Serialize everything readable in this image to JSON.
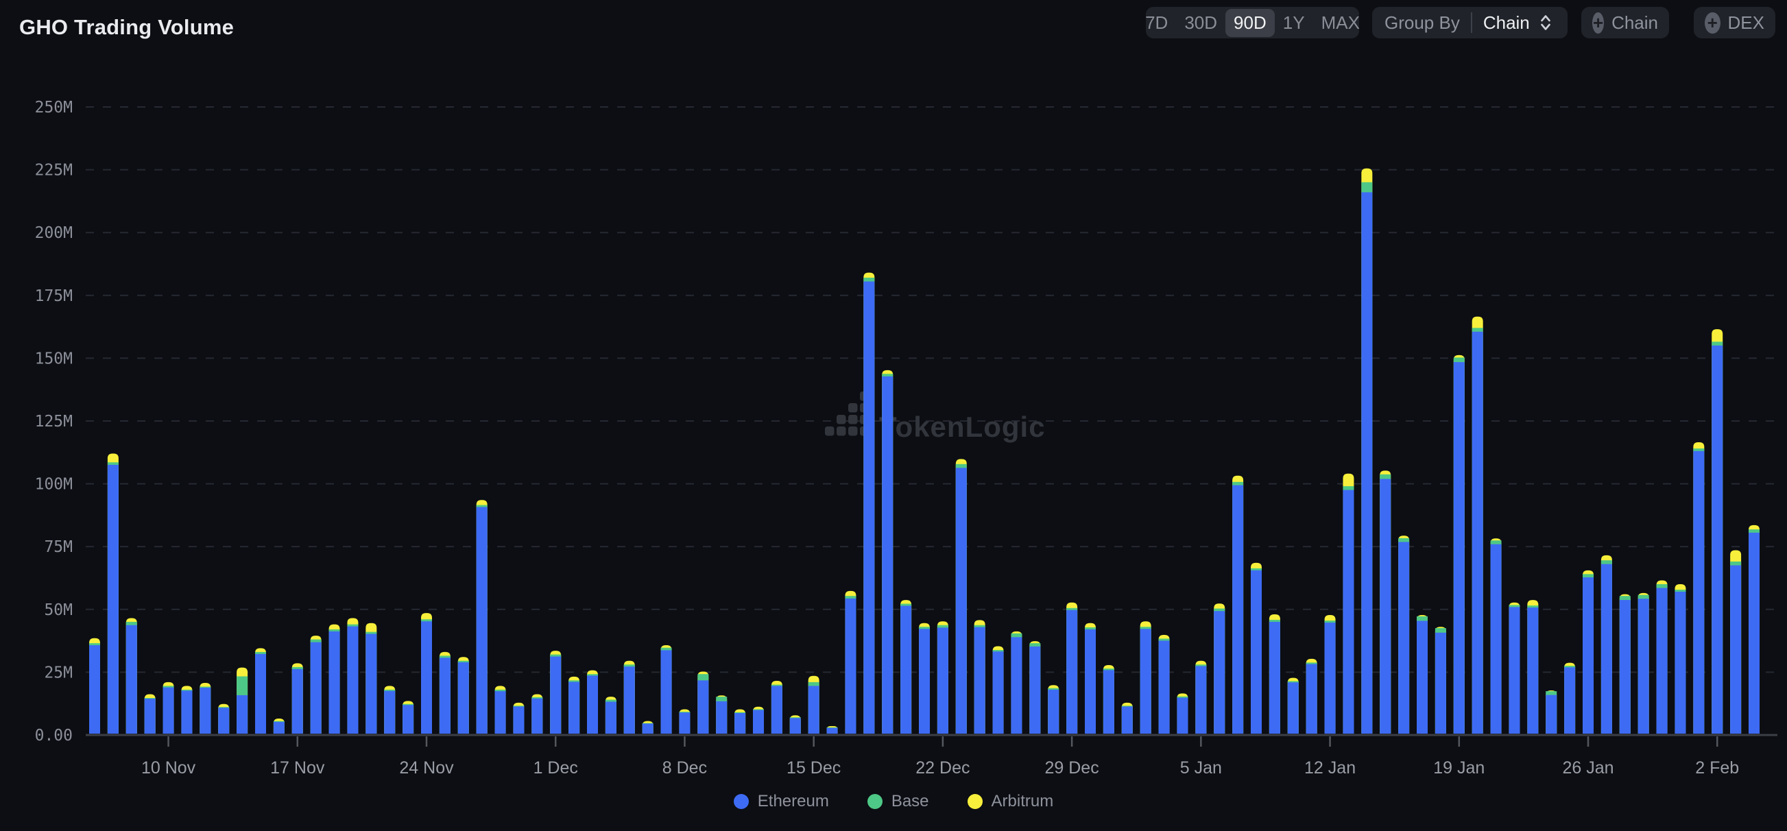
{
  "header": {
    "title": "GHO Trading Volume"
  },
  "controls": {
    "time_ranges": [
      "7D",
      "30D",
      "90D",
      "1Y",
      "MAX"
    ],
    "selected_range": "90D",
    "group_by_label": "Group By",
    "group_by_value": "Chain",
    "add_chain_label": "Chain",
    "add_dex_label": "DEX",
    "plus_icon": "+"
  },
  "watermark": {
    "text": "TokenLogic"
  },
  "legend": [
    {
      "label": "Ethereum",
      "color": "#3e6bf4"
    },
    {
      "label": "Base",
      "color": "#4ec886"
    },
    {
      "label": "Arbitrum",
      "color": "#f7ef3b"
    }
  ],
  "chart_data": {
    "type": "bar",
    "stacked": true,
    "title": "GHO Trading Volume",
    "units": "USD, millions",
    "ylim": [
      0,
      250000000
    ],
    "grid": "dashed-horizontal",
    "legend_position": "bottom-center",
    "y_tick_labels": [
      "0.00",
      "25M",
      "50M",
      "75M",
      "100M",
      "125M",
      "150M",
      "175M",
      "200M",
      "225M",
      "250M"
    ],
    "x_tick_labels": [
      "10 Nov",
      "17 Nov",
      "24 Nov",
      "1 Dec",
      "8 Dec",
      "15 Dec",
      "22 Dec",
      "29 Dec",
      "5 Jan",
      "12 Jan",
      "19 Jan",
      "26 Jan",
      "2 Feb"
    ],
    "x_tick_indices": [
      4,
      11,
      18,
      25,
      32,
      39,
      46,
      53,
      60,
      67,
      74,
      81,
      88
    ],
    "series_names": [
      "Ethereum",
      "Base",
      "Arbitrum"
    ],
    "colors": {
      "ethereum": "#3e6bf4",
      "base": "#4ec886",
      "arbitrum": "#f7ef3b"
    },
    "bars": [
      {
        "d": "6 Nov",
        "e": 35.2,
        "b": 0.8,
        "a": 2.0
      },
      {
        "d": "7 Nov",
        "e": 107.0,
        "b": 1.0,
        "a": 3.5
      },
      {
        "d": "8 Nov",
        "e": 43.2,
        "b": 1.3,
        "a": 1.5
      },
      {
        "d": "9 Nov",
        "e": 13.9,
        "b": 0.3,
        "a": 1.5
      },
      {
        "d": "10 Nov",
        "e": 18.4,
        "b": 0.6,
        "a": 1.5
      },
      {
        "d": "11 Nov",
        "e": 17.1,
        "b": 0.4,
        "a": 1.5
      },
      {
        "d": "12 Nov",
        "e": 18.3,
        "b": 0.4,
        "a": 1.5
      },
      {
        "d": "13 Nov",
        "e": 10.3,
        "b": 0.3,
        "a": 1.2
      },
      {
        "d": "14 Nov",
        "e": 15.3,
        "b": 7.5,
        "a": 3.5
      },
      {
        "d": "15 Nov",
        "e": 31.7,
        "b": 0.8,
        "a": 1.5
      },
      {
        "d": "16 Nov",
        "e": 4.7,
        "b": 0.3,
        "a": 1.0
      },
      {
        "d": "17 Nov",
        "e": 25.7,
        "b": 0.8,
        "a": 1.5
      },
      {
        "d": "18 Nov",
        "e": 36.4,
        "b": 1.1,
        "a": 1.5
      },
      {
        "d": "19 Nov",
        "e": 40.7,
        "b": 0.8,
        "a": 2.0
      },
      {
        "d": "20 Nov",
        "e": 42.7,
        "b": 0.8,
        "a": 2.5
      },
      {
        "d": "21 Nov",
        "e": 39.7,
        "b": 0.8,
        "a": 3.5
      },
      {
        "d": "22 Nov",
        "e": 17.0,
        "b": 0.5,
        "a": 1.5
      },
      {
        "d": "23 Nov",
        "e": 11.4,
        "b": 0.4,
        "a": 1.2
      },
      {
        "d": "24 Nov",
        "e": 44.7,
        "b": 0.8,
        "a": 2.5
      },
      {
        "d": "25 Nov",
        "e": 30.2,
        "b": 0.8,
        "a": 1.5
      },
      {
        "d": "26 Nov",
        "e": 28.4,
        "b": 0.6,
        "a": 1.5
      },
      {
        "d": "27 Nov",
        "e": 90.2,
        "b": 0.8,
        "a": 2.0
      },
      {
        "d": "28 Nov",
        "e": 16.9,
        "b": 0.6,
        "a": 1.5
      },
      {
        "d": "29 Nov",
        "e": 10.8,
        "b": 0.3,
        "a": 1.2
      },
      {
        "d": "30 Nov",
        "e": 14.0,
        "b": 0.5,
        "a": 1.2
      },
      {
        "d": "1 Dec",
        "e": 30.7,
        "b": 0.8,
        "a": 1.5
      },
      {
        "d": "2 Dec",
        "e": 20.6,
        "b": 0.6,
        "a": 1.5
      },
      {
        "d": "3 Dec",
        "e": 23.1,
        "b": 0.6,
        "a": 1.5
      },
      {
        "d": "4 Dec",
        "e": 12.7,
        "b": 0.8,
        "a": 1.2
      },
      {
        "d": "5 Dec",
        "e": 26.7,
        "b": 0.8,
        "a": 1.5
      },
      {
        "d": "6 Dec",
        "e": 4.0,
        "b": 0.2,
        "a": 0.8
      },
      {
        "d": "7 Dec",
        "e": 33.2,
        "b": 1.0,
        "a": 1.0
      },
      {
        "d": "8 Dec",
        "e": 8.4,
        "b": 0.3,
        "a": 1.0
      },
      {
        "d": "9 Dec",
        "e": 21.2,
        "b": 2.5,
        "a": 1.0
      },
      {
        "d": "10 Dec",
        "e": 12.9,
        "b": 1.8,
        "a": 0.5
      },
      {
        "d": "11 Dec",
        "e": 8.2,
        "b": 0.3,
        "a": 1.2
      },
      {
        "d": "12 Dec",
        "e": 9.4,
        "b": 0.3,
        "a": 1.0
      },
      {
        "d": "13 Dec",
        "e": 19.0,
        "b": 0.5,
        "a": 1.5
      },
      {
        "d": "14 Dec",
        "e": 6.2,
        "b": 0.3,
        "a": 0.8
      },
      {
        "d": "15 Dec",
        "e": 19.0,
        "b": 1.5,
        "a": 2.5
      },
      {
        "d": "16 Dec",
        "e": 2.3,
        "b": 0.2,
        "a": 0.5
      },
      {
        "d": "17 Dec",
        "e": 53.8,
        "b": 1.0,
        "a": 2.0
      },
      {
        "d": "18 Dec",
        "e": 180.0,
        "b": 1.5,
        "a": 2.0
      },
      {
        "d": "19 Dec",
        "e": 142.2,
        "b": 1.0,
        "a": 1.5
      },
      {
        "d": "20 Dec",
        "e": 50.9,
        "b": 0.8,
        "a": 1.5
      },
      {
        "d": "21 Dec",
        "e": 41.7,
        "b": 0.8,
        "a": 1.5
      },
      {
        "d": "22 Dec",
        "e": 42.2,
        "b": 1.0,
        "a": 1.5
      },
      {
        "d": "23 Dec",
        "e": 105.8,
        "b": 1.5,
        "a": 2.0
      },
      {
        "d": "24 Dec",
        "e": 42.4,
        "b": 0.8,
        "a": 2.0
      },
      {
        "d": "25 Dec",
        "e": 32.7,
        "b": 0.6,
        "a": 1.5
      },
      {
        "d": "26 Dec",
        "e": 38.4,
        "b": 1.5,
        "a": 0.8
      },
      {
        "d": "27 Dec",
        "e": 34.7,
        "b": 1.3,
        "a": 0.8
      },
      {
        "d": "28 Dec",
        "e": 17.5,
        "b": 0.6,
        "a": 1.2
      },
      {
        "d": "29 Dec",
        "e": 49.2,
        "b": 0.8,
        "a": 2.2
      },
      {
        "d": "30 Dec",
        "e": 41.5,
        "b": 0.8,
        "a": 1.7
      },
      {
        "d": "31 Dec",
        "e": 25.3,
        "b": 0.6,
        "a": 1.4
      },
      {
        "d": "1 Jan",
        "e": 10.8,
        "b": 0.3,
        "a": 1.2
      },
      {
        "d": "2 Jan",
        "e": 41.7,
        "b": 0.8,
        "a": 2.2
      },
      {
        "d": "3 Jan",
        "e": 37.0,
        "b": 0.8,
        "a": 1.5
      },
      {
        "d": "4 Jan",
        "e": 14.3,
        "b": 0.5,
        "a": 1.2
      },
      {
        "d": "5 Jan",
        "e": 26.9,
        "b": 0.6,
        "a": 1.5
      },
      {
        "d": "6 Jan",
        "e": 48.8,
        "b": 1.0,
        "a": 2.0
      },
      {
        "d": "7 Jan",
        "e": 98.9,
        "b": 1.3,
        "a": 2.5
      },
      {
        "d": "8 Jan",
        "e": 65.0,
        "b": 0.8,
        "a": 2.2
      },
      {
        "d": "9 Jan",
        "e": 44.5,
        "b": 0.8,
        "a": 2.2
      },
      {
        "d": "10 Jan",
        "e": 20.4,
        "b": 0.5,
        "a": 1.3
      },
      {
        "d": "11 Jan",
        "e": 27.7,
        "b": 0.6,
        "a": 1.5
      },
      {
        "d": "12 Jan",
        "e": 44.2,
        "b": 0.8,
        "a": 2.2
      },
      {
        "d": "13 Jan",
        "e": 97.0,
        "b": 1.5,
        "a": 5.0
      },
      {
        "d": "14 Jan",
        "e": 215.5,
        "b": 4.0,
        "a": 5.5
      },
      {
        "d": "15 Jan",
        "e": 101.4,
        "b": 1.8,
        "a": 1.5
      },
      {
        "d": "16 Jan",
        "e": 76.3,
        "b": 1.5,
        "a": 1.0
      },
      {
        "d": "17 Jan",
        "e": 44.9,
        "b": 1.8,
        "a": 0.5
      },
      {
        "d": "18 Jan",
        "e": 40.2,
        "b": 1.8,
        "a": 0.5
      },
      {
        "d": "19 Jan",
        "e": 147.9,
        "b": 1.8,
        "a": 1.0
      },
      {
        "d": "20 Jan",
        "e": 160.0,
        "b": 1.5,
        "a": 4.5
      },
      {
        "d": "21 Jan",
        "e": 75.4,
        "b": 1.5,
        "a": 0.8
      },
      {
        "d": "22 Jan",
        "e": 50.4,
        "b": 0.8,
        "a": 1.0
      },
      {
        "d": "23 Jan",
        "e": 50.2,
        "b": 0.8,
        "a": 2.2
      },
      {
        "d": "24 Jan",
        "e": 15.4,
        "b": 1.5,
        "a": 0.3
      },
      {
        "d": "25 Jan",
        "e": 26.4,
        "b": 0.6,
        "a": 1.2
      },
      {
        "d": "26 Jan",
        "e": 62.2,
        "b": 1.3,
        "a": 1.5
      },
      {
        "d": "27 Jan",
        "e": 67.5,
        "b": 1.5,
        "a": 2.0
      },
      {
        "d": "28 Jan",
        "e": 53.2,
        "b": 1.6,
        "a": 0.7
      },
      {
        "d": "29 Jan",
        "e": 53.7,
        "b": 1.5,
        "a": 0.8
      },
      {
        "d": "30 Jan",
        "e": 58.0,
        "b": 1.5,
        "a": 1.5
      },
      {
        "d": "31 Jan",
        "e": 56.5,
        "b": 0.8,
        "a": 2.2
      },
      {
        "d": "1 Feb",
        "e": 112.5,
        "b": 1.0,
        "a": 2.5
      },
      {
        "d": "2 Feb",
        "e": 154.5,
        "b": 1.5,
        "a": 5.0
      },
      {
        "d": "3 Feb",
        "e": 67.0,
        "b": 1.5,
        "a": 4.5
      },
      {
        "d": "4 Feb",
        "e": 80.0,
        "b": 1.3,
        "a": 1.7
      }
    ]
  }
}
